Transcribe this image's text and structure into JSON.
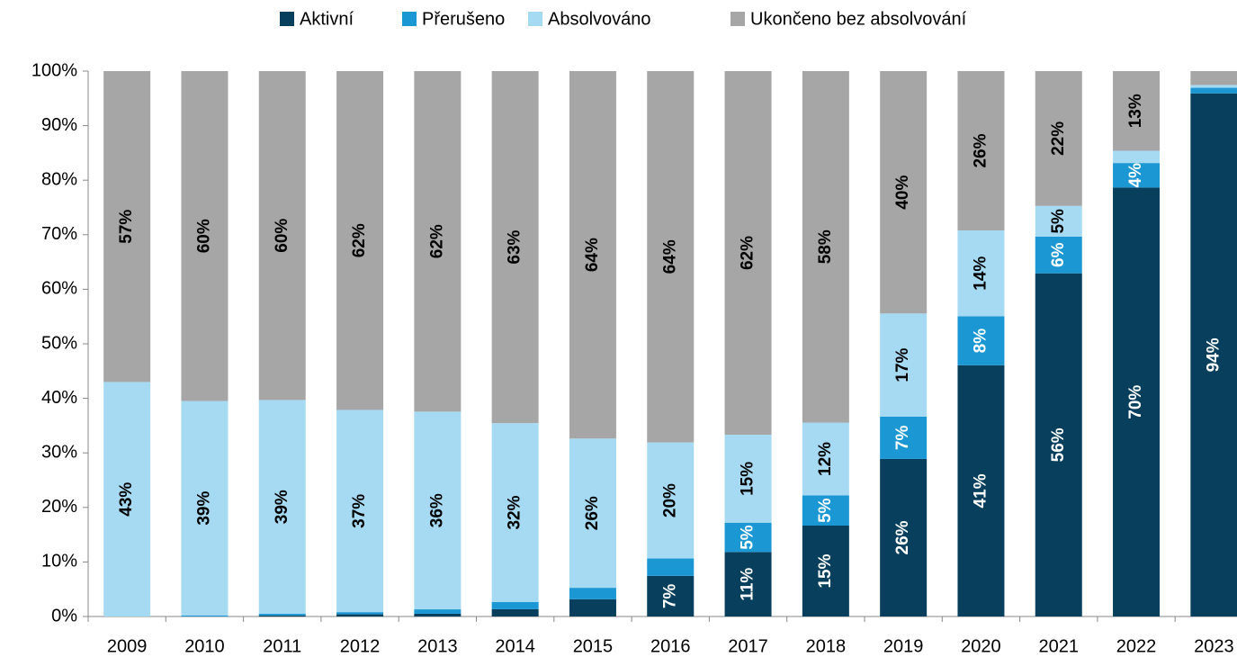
{
  "chart_data": {
    "type": "bar",
    "stacked": "percent",
    "categories": [
      "2009",
      "2010",
      "2011",
      "2012",
      "2013",
      "2014",
      "2015",
      "2016",
      "2017",
      "2018",
      "2019",
      "2020",
      "2021",
      "2022",
      "2023"
    ],
    "series": [
      {
        "name": "Aktivní",
        "color": "#073f5c",
        "values": [
          0,
          0,
          0.2,
          0.4,
          0.5,
          1.3,
          3,
          7,
          11,
          15,
          26,
          41,
          56,
          70,
          94
        ],
        "value_labels": [
          null,
          null,
          null,
          null,
          null,
          null,
          null,
          "7%",
          "11%",
          "15%",
          "26%",
          "41%",
          "56%",
          "70%",
          "94%"
        ]
      },
      {
        "name": "Přerušeno",
        "color": "#1b98d4",
        "values": [
          0,
          0.2,
          0.3,
          0.4,
          0.8,
          1.3,
          2,
          3,
          5,
          5,
          7,
          8,
          6,
          4,
          1
        ],
        "value_labels": [
          null,
          null,
          null,
          null,
          null,
          null,
          null,
          null,
          "5%",
          "5%",
          "7%",
          "8%",
          "6%",
          "4%",
          null
        ]
      },
      {
        "name": "Absolvováno",
        "color": "#a6daf3",
        "values": [
          43,
          39,
          39,
          37,
          36,
          32,
          26,
          20,
          15,
          12,
          17,
          14,
          5,
          2,
          0.5
        ],
        "value_labels": [
          "43%",
          "39%",
          "39%",
          "37%",
          "36%",
          "32%",
          "26%",
          "20%",
          "15%",
          "12%",
          "17%",
          "14%",
          "5%",
          null,
          null
        ]
      },
      {
        "name": "Ukončeno bez absolvování",
        "color": "#a6a6a6",
        "values": [
          57,
          60,
          60,
          62,
          62,
          63,
          64,
          64,
          62,
          58,
          40,
          26,
          22,
          13,
          2.5
        ],
        "value_labels": [
          "57%",
          "60%",
          "60%",
          "62%",
          "62%",
          "63%",
          "64%",
          "64%",
          "62%",
          "58%",
          "40%",
          "26%",
          "22%",
          "13%",
          null
        ]
      }
    ],
    "ylim": [
      0,
      100
    ],
    "yticks": [
      {
        "value": 0,
        "label": "0%"
      },
      {
        "value": 10,
        "label": "10%"
      },
      {
        "value": 20,
        "label": "20%"
      },
      {
        "value": 30,
        "label": "30%"
      },
      {
        "value": 40,
        "label": "40%"
      },
      {
        "value": 50,
        "label": "50%"
      },
      {
        "value": 60,
        "label": "60%"
      },
      {
        "value": 70,
        "label": "70%"
      },
      {
        "value": 80,
        "label": "80%"
      },
      {
        "value": 90,
        "label": "90%"
      },
      {
        "value": 100,
        "label": "100%"
      }
    ],
    "legend": "top"
  }
}
